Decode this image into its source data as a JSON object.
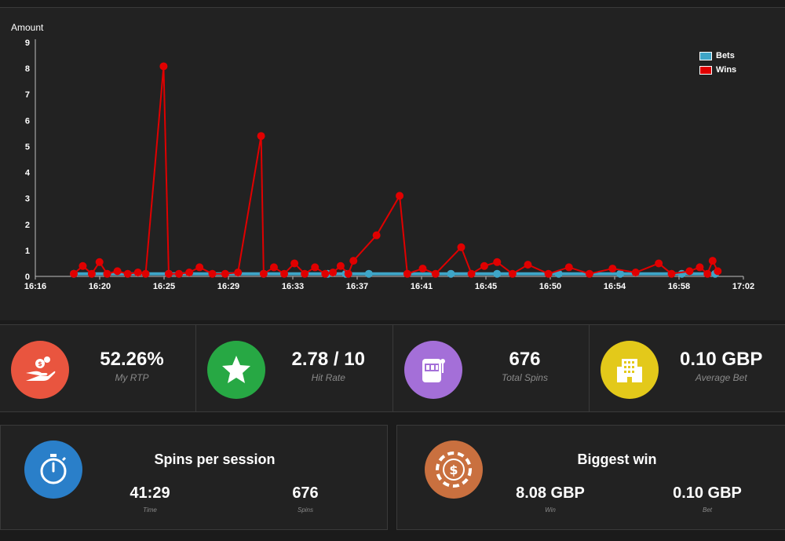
{
  "chart_data": {
    "type": "line",
    "ylabel": "Amount",
    "ylim": [
      0,
      9
    ],
    "yticks": [
      "0",
      "1",
      "2",
      "3",
      "4",
      "5",
      "6",
      "7",
      "8",
      "9"
    ],
    "xticks": [
      "16:16",
      "16:20",
      "16:25",
      "16:29",
      "16:33",
      "16:37",
      "16:41",
      "16:45",
      "16:50",
      "16:54",
      "16:58",
      "17:02"
    ],
    "legend_position": "top-right",
    "grid": false,
    "series": [
      {
        "name": "Bets",
        "color": "#3ea5c7",
        "x": [
          "16:18:30",
          "16:24:40",
          "16:30:50",
          "16:35:00",
          "16:36:10",
          "16:37:40",
          "16:43:00",
          "16:46:00",
          "16:50:00",
          "16:54:00",
          "16:58:00",
          "17:00:10"
        ],
        "y": [
          0.1,
          0.1,
          0.1,
          0.1,
          0.1,
          0.1,
          0.1,
          0.1,
          0.1,
          0.1,
          0.1,
          0.1
        ]
      },
      {
        "name": "Wins",
        "color": "#e00000",
        "x": [
          "16:18:30",
          "16:19:05",
          "16:19:40",
          "16:20:10",
          "16:20:40",
          "16:21:20",
          "16:22:00",
          "16:22:40",
          "16:23:10",
          "16:24:20",
          "16:24:40",
          "16:25:20",
          "16:26:00",
          "16:26:40",
          "16:27:30",
          "16:28:20",
          "16:29:10",
          "16:30:40",
          "16:30:50",
          "16:31:30",
          "16:32:10",
          "16:32:50",
          "16:33:30",
          "16:34:10",
          "16:34:50",
          "16:35:20",
          "16:35:50",
          "16:36:20",
          "16:36:40",
          "16:38:10",
          "16:39:40",
          "16:40:10",
          "16:41:10",
          "16:42:00",
          "16:43:40",
          "16:44:20",
          "16:45:10",
          "16:46:00",
          "16:47:00",
          "16:48:00",
          "16:49:20",
          "16:50:40",
          "16:52:00",
          "16:53:30",
          "16:55:00",
          "16:56:30",
          "16:57:20",
          "16:58:30",
          "16:59:10",
          "16:59:40",
          "17:00:00",
          "17:00:20"
        ],
        "y": [
          0.1,
          0.4,
          0.1,
          0.55,
          0.1,
          0.2,
          0.1,
          0.15,
          0.1,
          8.08,
          0.1,
          0.1,
          0.15,
          0.35,
          0.1,
          0.1,
          0.15,
          5.4,
          0.1,
          0.35,
          0.1,
          0.5,
          0.1,
          0.35,
          0.1,
          0.15,
          0.4,
          0.1,
          0.6,
          1.58,
          3.1,
          0.1,
          0.3,
          0.1,
          1.12,
          0.1,
          0.4,
          0.55,
          0.1,
          0.45,
          0.1,
          0.35,
          0.1,
          0.3,
          0.15,
          0.5,
          0.1,
          0.2,
          0.35,
          0.1,
          0.6,
          0.2
        ]
      }
    ]
  },
  "stats": [
    {
      "value": "52.26%",
      "label": "My RTP",
      "icon": "hand-coin-icon",
      "color": "#e9553f"
    },
    {
      "value": "2.78 / 10",
      "label": "Hit Rate",
      "icon": "star-icon",
      "color": "#27a844"
    },
    {
      "value": "676",
      "label": "Total Spins",
      "icon": "slot-machine-icon",
      "color": "#a46fd8"
    },
    {
      "value": "0.10 GBP",
      "label": "Average Bet",
      "icon": "building-icon",
      "color": "#e3c91a"
    }
  ],
  "spins_panel": {
    "title": "Spins per session",
    "icon": "stopwatch-icon",
    "color": "#2a7fc9",
    "time_value": "41:29",
    "time_label": "Time",
    "spins_value": "676",
    "spins_label": "Spins"
  },
  "biggest_panel": {
    "title": "Biggest win",
    "icon": "casino-chip-icon",
    "color": "#c9703f",
    "win_value": "8.08 GBP",
    "win_label": "Win",
    "bet_value": "0.10 GBP",
    "bet_label": "Bet"
  }
}
